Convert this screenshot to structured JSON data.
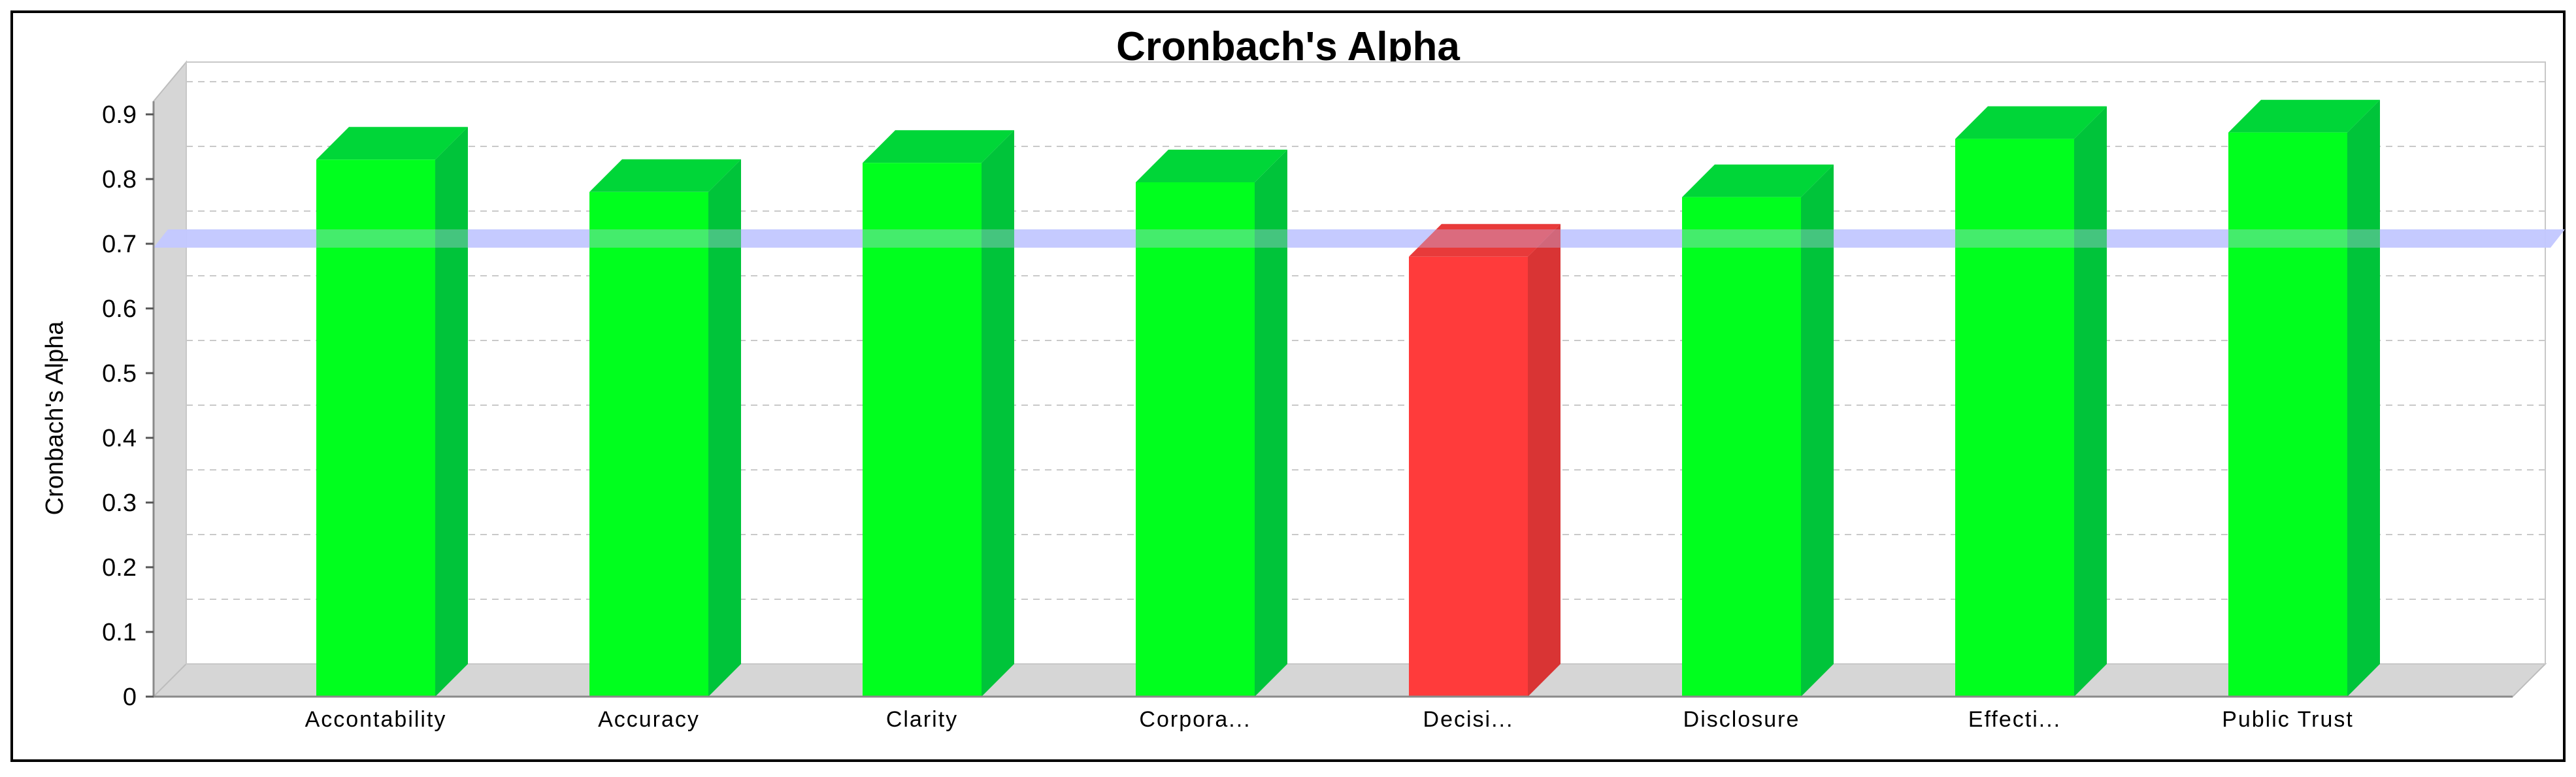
{
  "chart_data": {
    "type": "bar",
    "title": "Cronbach's Alpha",
    "xlabel": "",
    "ylabel": "Cronbach's Alpha",
    "categories": [
      "Accontability",
      "Accuracy",
      "Clarity",
      "Corpora...",
      "Decisi...",
      "Disclosure",
      "Effecti...",
      "Public Trust"
    ],
    "values": [
      0.83,
      0.78,
      0.825,
      0.795,
      0.68,
      0.772,
      0.862,
      0.872
    ],
    "ylim": [
      0,
      0.9
    ],
    "yticks": [
      "0",
      "0.1",
      "0.2",
      "0.3",
      "0.4",
      "0.5",
      "0.6",
      "0.7",
      "0.8",
      "0.9"
    ],
    "threshold": 0.7,
    "grid": true,
    "legend": "none",
    "colors": {
      "pass_front": "#00ff1e",
      "pass_side": "#00c43a",
      "pass_top": "#00d638",
      "fail_front": "#ff3b3b",
      "fail_side": "#d93434",
      "fail_top": "#e83a3a",
      "threshold_band": "#c4c8ff",
      "wall": "#d6d6d6",
      "grid": "#c9c9c9"
    }
  }
}
